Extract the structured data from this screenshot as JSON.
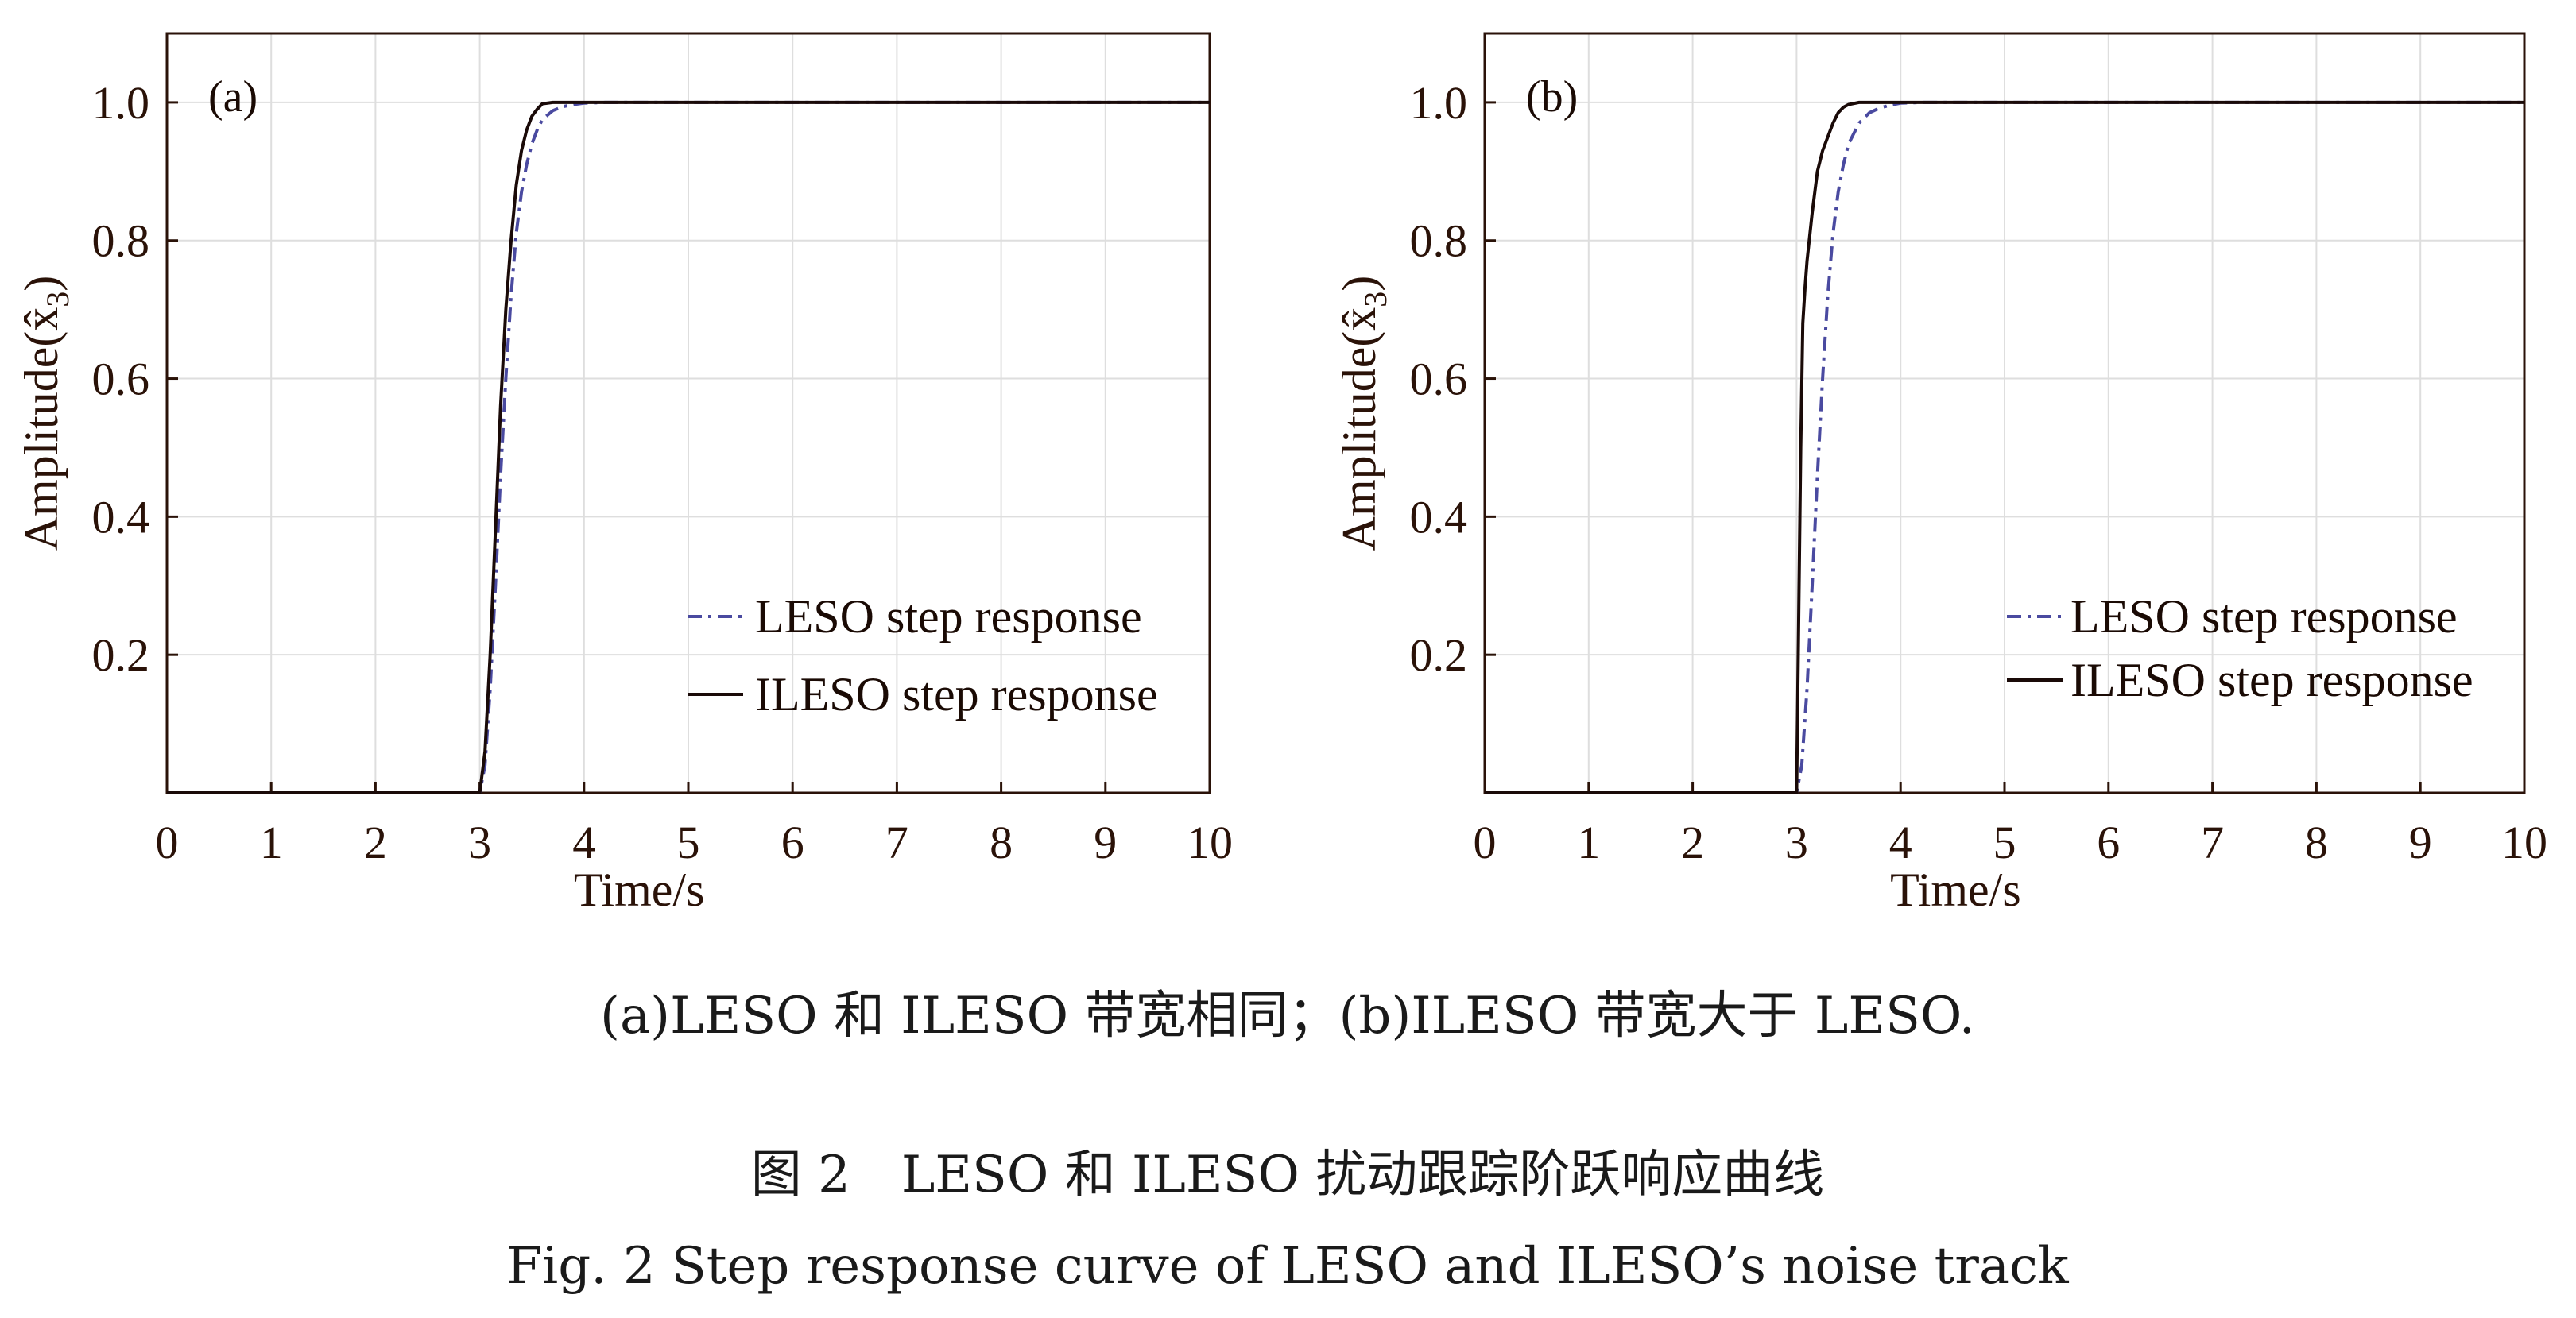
{
  "chart_data": [
    {
      "type": "line",
      "panel_label": "(a)",
      "xlabel": "Time/s",
      "ylabel": "Amplitude(x̂",
      "ylabel_sub": "3",
      "ylabel_close": ")",
      "xlim": [
        0,
        10
      ],
      "ylim": [
        0,
        1.1
      ],
      "xticks": [
        0,
        1,
        2,
        3,
        4,
        5,
        6,
        7,
        8,
        9,
        10
      ],
      "yticks": [
        0.2,
        0.4,
        0.6,
        0.8,
        1.0
      ],
      "ytick_labels": [
        "0.2",
        "0.4",
        "0.6",
        "0.8",
        "1.0"
      ],
      "grid": true,
      "legend_position": "bottom-right",
      "series": [
        {
          "name": "LESO step response",
          "style": "dash-dot",
          "color": "#4a4aa0",
          "x": [
            0,
            3.0,
            3.05,
            3.1,
            3.15,
            3.2,
            3.25,
            3.3,
            3.35,
            3.4,
            3.45,
            3.5,
            3.55,
            3.6,
            3.7,
            3.8,
            3.9,
            4.0,
            4.2,
            10
          ],
          "y": [
            0,
            0,
            0.04,
            0.15,
            0.3,
            0.46,
            0.6,
            0.72,
            0.81,
            0.87,
            0.91,
            0.94,
            0.96,
            0.975,
            0.988,
            0.994,
            0.997,
            0.999,
            1.0,
            1.0
          ]
        },
        {
          "name": "ILESO step response",
          "style": "solid",
          "color": "#1a0a08",
          "x": [
            0,
            3.0,
            3.05,
            3.1,
            3.15,
            3.2,
            3.25,
            3.3,
            3.35,
            3.4,
            3.45,
            3.5,
            3.55,
            3.6,
            3.7,
            10
          ],
          "y": [
            0,
            0,
            0.06,
            0.2,
            0.38,
            0.56,
            0.7,
            0.8,
            0.88,
            0.93,
            0.96,
            0.98,
            0.99,
            0.998,
            1.0,
            1.0
          ]
        }
      ]
    },
    {
      "type": "line",
      "panel_label": "(b)",
      "xlabel": "Time/s",
      "ylabel": "Amplitude(x̂",
      "ylabel_sub": "3",
      "ylabel_close": ")",
      "xlim": [
        0,
        10
      ],
      "ylim": [
        0,
        1.1
      ],
      "xticks": [
        0,
        1,
        2,
        3,
        4,
        5,
        6,
        7,
        8,
        9,
        10
      ],
      "yticks": [
        0.2,
        0.4,
        0.6,
        0.8,
        1.0
      ],
      "ytick_labels": [
        "0.2",
        "0.4",
        "0.6",
        "0.8",
        "1.0"
      ],
      "grid": true,
      "legend_position": "bottom-right",
      "series": [
        {
          "name": "LESO step response",
          "style": "dash-dot",
          "color": "#4a4aa0",
          "x": [
            0,
            3.0,
            3.05,
            3.1,
            3.15,
            3.2,
            3.25,
            3.3,
            3.35,
            3.4,
            3.45,
            3.5,
            3.6,
            3.7,
            3.8,
            3.9,
            4.0,
            4.2,
            10
          ],
          "y": [
            0,
            0,
            0.04,
            0.15,
            0.3,
            0.46,
            0.6,
            0.72,
            0.81,
            0.87,
            0.91,
            0.94,
            0.97,
            0.985,
            0.992,
            0.996,
            0.999,
            1.0,
            1.0
          ]
        },
        {
          "name": "ILESO step response",
          "style": "solid",
          "color": "#1a0a08",
          "x": [
            0,
            3.0,
            3.02,
            3.04,
            3.06,
            3.08,
            3.1,
            3.15,
            3.2,
            3.25,
            3.3,
            3.35,
            3.4,
            3.45,
            3.5,
            3.6,
            10
          ],
          "y": [
            0,
            0,
            0.25,
            0.5,
            0.68,
            0.73,
            0.77,
            0.84,
            0.9,
            0.93,
            0.95,
            0.97,
            0.985,
            0.993,
            0.997,
            1.0,
            1.0
          ]
        }
      ]
    }
  ],
  "caption": {
    "subcaption": "(a)LESO 和 ILESO 带宽相同；(b)ILESO 带宽大于 LESO.",
    "figure_title_cn": "图 2　LESO 和 ILESO 扰动跟踪阶跃响应曲线",
    "figure_title_en": "Fig. 2  Step response curve of LESO and ILESO’s noise track"
  }
}
